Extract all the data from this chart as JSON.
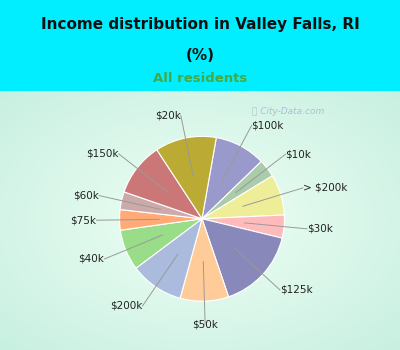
{
  "title_line1": "Income distribution in Valley Falls, RI",
  "title_line2": "(%)",
  "subtitle": "All residents",
  "title_color": "#111111",
  "subtitle_color": "#44aa44",
  "bg_top": "#00eeff",
  "watermark": "City-Data.com",
  "labels": [
    "$100k",
    "$10k",
    "> $200k",
    "$30k",
    "$125k",
    "$50k",
    "$200k",
    "$40k",
    "$75k",
    "$60k",
    "$150k",
    "$20k"
  ],
  "values": [
    10.0,
    3.5,
    8.0,
    4.5,
    16.0,
    9.5,
    10.5,
    8.0,
    4.0,
    3.5,
    10.5,
    12.0
  ],
  "colors": [
    "#9999cc",
    "#aaccaa",
    "#eeee99",
    "#ffbbbb",
    "#8888bb",
    "#ffcc99",
    "#aabbdd",
    "#99dd88",
    "#ffaa77",
    "#ccaaaa",
    "#cc7777",
    "#bbaa33"
  ],
  "label_fontsize": 7.5,
  "label_color": "#222222"
}
